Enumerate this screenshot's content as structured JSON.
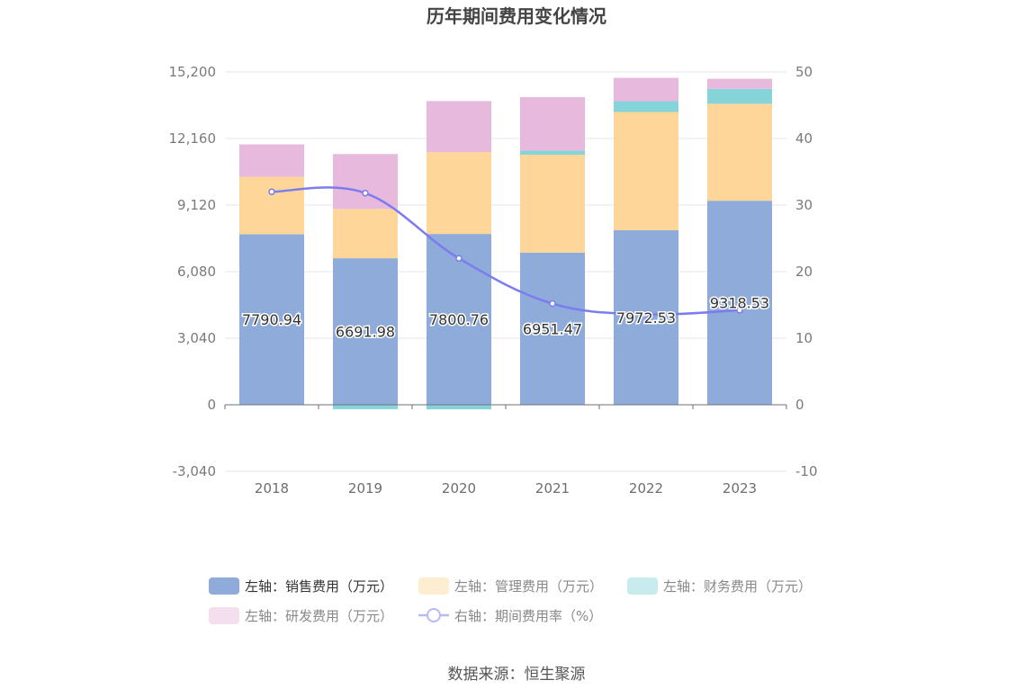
{
  "title": "历年期间费用变化情况",
  "source": "数据来源：恒生聚源",
  "colors": {
    "sales": "#8eabd9",
    "admin": "#fed699",
    "finance": "#84d4da",
    "rd": "#e7b9dc",
    "rate": "#7b7cf0"
  },
  "chart_data": {
    "type": "bar",
    "stacked": true,
    "categories": [
      "2018",
      "2019",
      "2020",
      "2021",
      "2022",
      "2023"
    ],
    "left_axis": {
      "min": -3040,
      "max": 15200,
      "ticks": [
        -3040,
        0,
        3040,
        6080,
        9120,
        12160,
        15200
      ],
      "tick_labels": [
        "-3,040",
        "0",
        "3,040",
        "6,080",
        "9,120",
        "12,160",
        "15,200"
      ]
    },
    "right_axis": {
      "min": -10,
      "max": 50,
      "ticks": [
        -10,
        0,
        10,
        20,
        30,
        40,
        50
      ],
      "tick_labels": [
        "-10",
        "0",
        "10",
        "20",
        "30",
        "40",
        "50"
      ]
    },
    "grid": true,
    "legend_position": "bottom",
    "series": [
      {
        "key": "sales",
        "name": "左轴：销售费用（万元）",
        "type": "bar",
        "axis": "left",
        "values": [
          7790.94,
          6691.98,
          7800.76,
          6951.47,
          7972.53,
          9318.53
        ],
        "labels": [
          "7790.94",
          "6691.98",
          "7800.76",
          "6951.47",
          "7972.53",
          "9318.53"
        ]
      },
      {
        "key": "admin",
        "name": "左轴：管理费用（万元）",
        "type": "bar",
        "axis": "left",
        "values": [
          2620,
          2250,
          3740,
          4470,
          5400,
          4430
        ]
      },
      {
        "key": "finance",
        "name": "左轴：财务费用（万元）",
        "type": "bar",
        "axis": "left",
        "values": [
          -10,
          -200,
          -210,
          190,
          490,
          680
        ]
      },
      {
        "key": "rd",
        "name": "左轴：研发费用（万元）",
        "type": "bar",
        "axis": "left",
        "values": [
          1480,
          2510,
          2330,
          2440,
          1070,
          460
        ]
      },
      {
        "key": "rate",
        "name": "右轴：期间费用率（%）",
        "type": "line",
        "axis": "right",
        "values": [
          32.0,
          31.8,
          22.0,
          15.2,
          13.6,
          14.2
        ]
      }
    ]
  }
}
